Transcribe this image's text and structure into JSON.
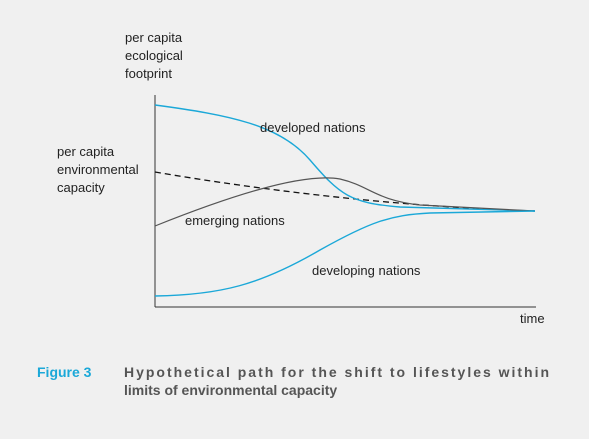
{
  "y_axis_label": [
    "per capita",
    "ecological",
    "footprint"
  ],
  "capacity_label": [
    "per capita",
    "environmental",
    "capacity"
  ],
  "x_axis_label": "time",
  "curves": [
    {
      "label": "developed nations"
    },
    {
      "label": "emerging nations"
    },
    {
      "label": "developing nations"
    }
  ],
  "caption": {
    "number": "Figure 3",
    "lines": [
      "Hypothetical path for the shift to lifestyles within",
      "limits of environmental capacity"
    ]
  }
}
